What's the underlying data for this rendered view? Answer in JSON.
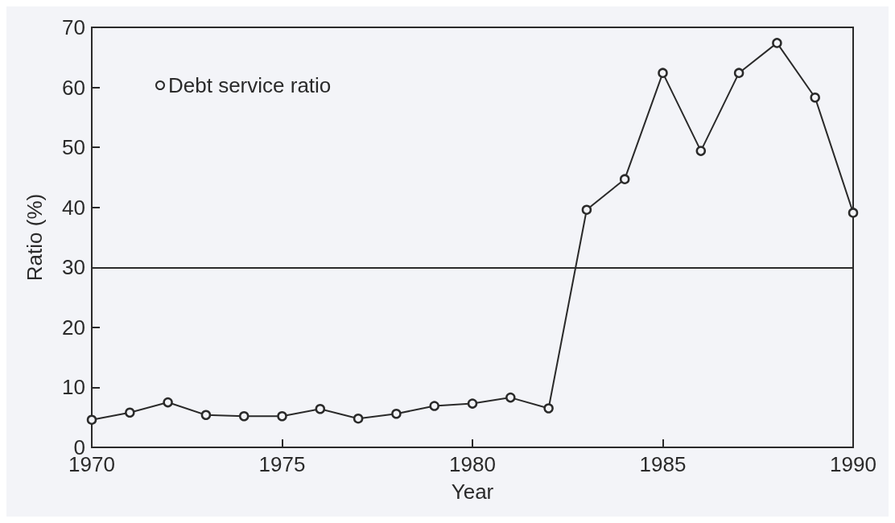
{
  "chart_data": {
    "type": "line",
    "xlabel": "Year",
    "ylabel": "Ratio (%)",
    "x": [
      1970,
      1971,
      1972,
      1973,
      1974,
      1975,
      1976,
      1977,
      1978,
      1979,
      1980,
      1981,
      1982,
      1983,
      1984,
      1985,
      1986,
      1987,
      1988,
      1989,
      1990
    ],
    "series": [
      {
        "name": "Debt service ratio",
        "color": "#2a2a2a",
        "values": [
          4.6,
          5.8,
          7.5,
          5.4,
          5.2,
          5.2,
          6.4,
          4.8,
          5.6,
          6.9,
          7.3,
          8.3,
          6.5,
          39.6,
          44.7,
          62.4,
          49.4,
          62.4,
          67.4,
          58.3,
          39.1
        ]
      }
    ],
    "xlim": [
      1970,
      1990
    ],
    "xticks": [
      1970,
      1975,
      1980,
      1985,
      1990
    ],
    "ylim": [
      0,
      70
    ],
    "yticks": [
      0,
      10,
      20,
      30,
      40,
      50,
      60,
      70
    ],
    "ref_lines": [
      {
        "axis": "y",
        "value": 30,
        "color": "#2a2a2a"
      }
    ],
    "legend": "top left",
    "marker": "circle",
    "line_style": "solid",
    "grid": false
  }
}
